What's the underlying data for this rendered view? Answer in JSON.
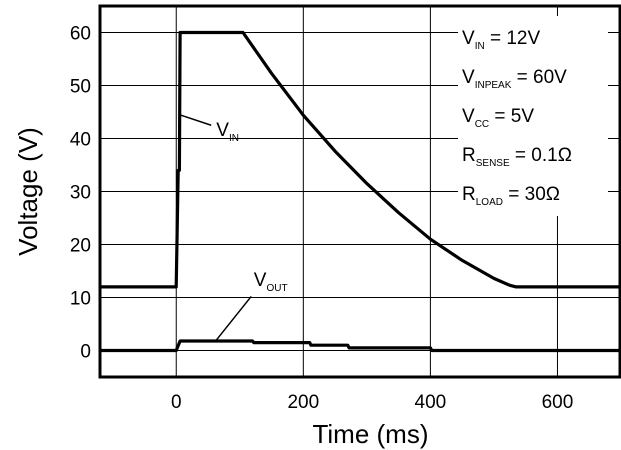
{
  "chart_data": {
    "type": "line",
    "xlabel": "Time (ms)",
    "ylabel": "Voltage (V)",
    "xlim": [
      -120,
      700
    ],
    "ylim": [
      -5,
      65
    ],
    "x_ticks": [
      0,
      200,
      400,
      600
    ],
    "y_ticks": [
      0,
      10,
      20,
      30,
      40,
      50,
      60
    ],
    "grid": true,
    "series": [
      {
        "name": "VIN",
        "color": "#000000",
        "points": [
          [
            -120,
            12
          ],
          [
            0,
            12
          ],
          [
            3,
            34
          ],
          [
            5,
            34
          ],
          [
            6,
            60
          ],
          [
            105,
            60
          ],
          [
            150,
            52.3
          ],
          [
            200,
            44.4
          ],
          [
            250,
            37.6
          ],
          [
            300,
            31.5
          ],
          [
            350,
            26.0
          ],
          [
            400,
            21.0
          ],
          [
            450,
            17.0
          ],
          [
            500,
            13.6
          ],
          [
            525,
            12.3
          ],
          [
            535,
            12
          ],
          [
            700,
            12
          ]
        ]
      },
      {
        "name": "VOUT",
        "color": "#000000",
        "points": [
          [
            -120,
            0
          ],
          [
            0,
            0
          ],
          [
            6,
            1.8
          ],
          [
            120,
            1.8
          ],
          [
            122,
            1.5
          ],
          [
            210,
            1.5
          ],
          [
            212,
            1.0
          ],
          [
            270,
            1.0
          ],
          [
            272,
            0.5
          ],
          [
            400,
            0.5
          ],
          [
            402,
            0
          ],
          [
            700,
            0
          ]
        ]
      }
    ],
    "labels": {
      "vin_main": "V",
      "vin_sub": "IN",
      "vout_main": "V",
      "vout_sub": "OUT"
    },
    "annotations": [
      {
        "main": "V",
        "sub": "IN",
        "rest": " = 12V"
      },
      {
        "main": "V",
        "sub": "INPEAK",
        "rest": " = 60V"
      },
      {
        "main": "V",
        "sub": "CC",
        "rest": " = 5V"
      },
      {
        "main": "R",
        "sub": "SENSE",
        "rest": " = 0.1Ω"
      },
      {
        "main": "R",
        "sub": "LOAD",
        "rest": " = 30Ω"
      }
    ]
  }
}
